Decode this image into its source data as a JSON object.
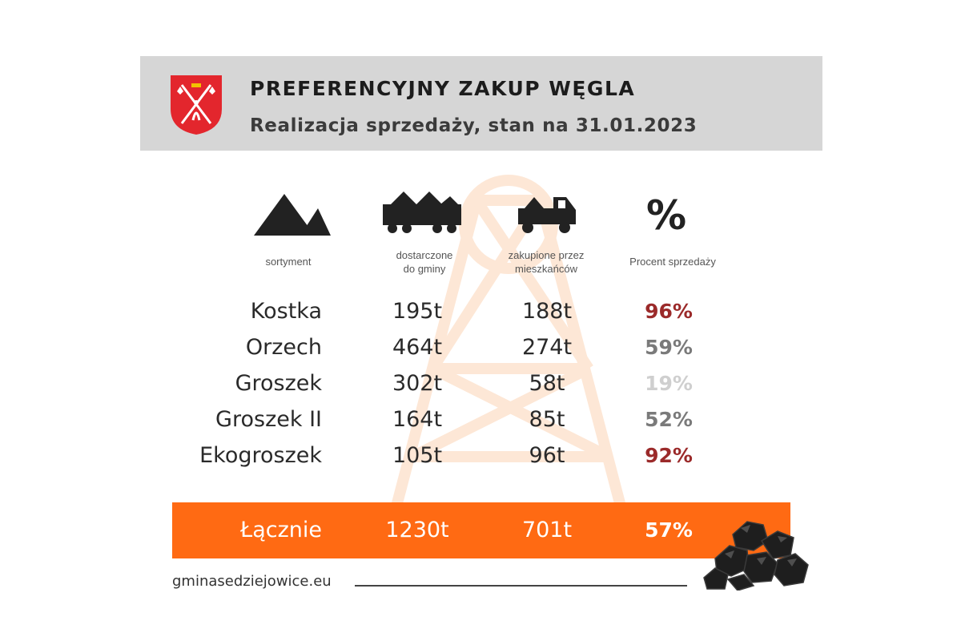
{
  "header": {
    "title": "PREFERENCYJNY ZAKUP WĘGLA",
    "subtitle": "Realizacja sprzedaży, stan na 31.01.2023"
  },
  "columns": {
    "sortyment": "sortyment",
    "dostarczone": [
      "dostarczone",
      "do gminy"
    ],
    "zakupione": [
      "zakupione przez",
      "mieszkańców"
    ],
    "procent_icon_text": "%",
    "procent": "Procent sprzedaży"
  },
  "rows": [
    {
      "name": "Kostka",
      "delivered": "195t",
      "purchased": "188t",
      "percent": "96%",
      "color": "#9b2a2a"
    },
    {
      "name": "Orzech",
      "delivered": "464t",
      "purchased": "274t",
      "percent": "59%",
      "color": "#7a7a7a"
    },
    {
      "name": "Groszek",
      "delivered": "302t",
      "purchased": "58t",
      "percent": "19%",
      "color": "#cfcfcf"
    },
    {
      "name": "Groszek II",
      "delivered": "164t",
      "purchased": "85t",
      "percent": "52%",
      "color": "#7a7a7a"
    },
    {
      "name": "Ekogroszek",
      "delivered": "105t",
      "purchased": "96t",
      "percent": "92%",
      "color": "#9b2a2a"
    }
  ],
  "total": {
    "name": "Łącznie",
    "delivered": "1230t",
    "purchased": "701t",
    "percent": "57%"
  },
  "footer": {
    "website": "gminasedziejowice.eu"
  },
  "colors": {
    "accent": "#ff6a13",
    "header_bg": "#d6d6d6",
    "crest_red": "#e3262d"
  }
}
